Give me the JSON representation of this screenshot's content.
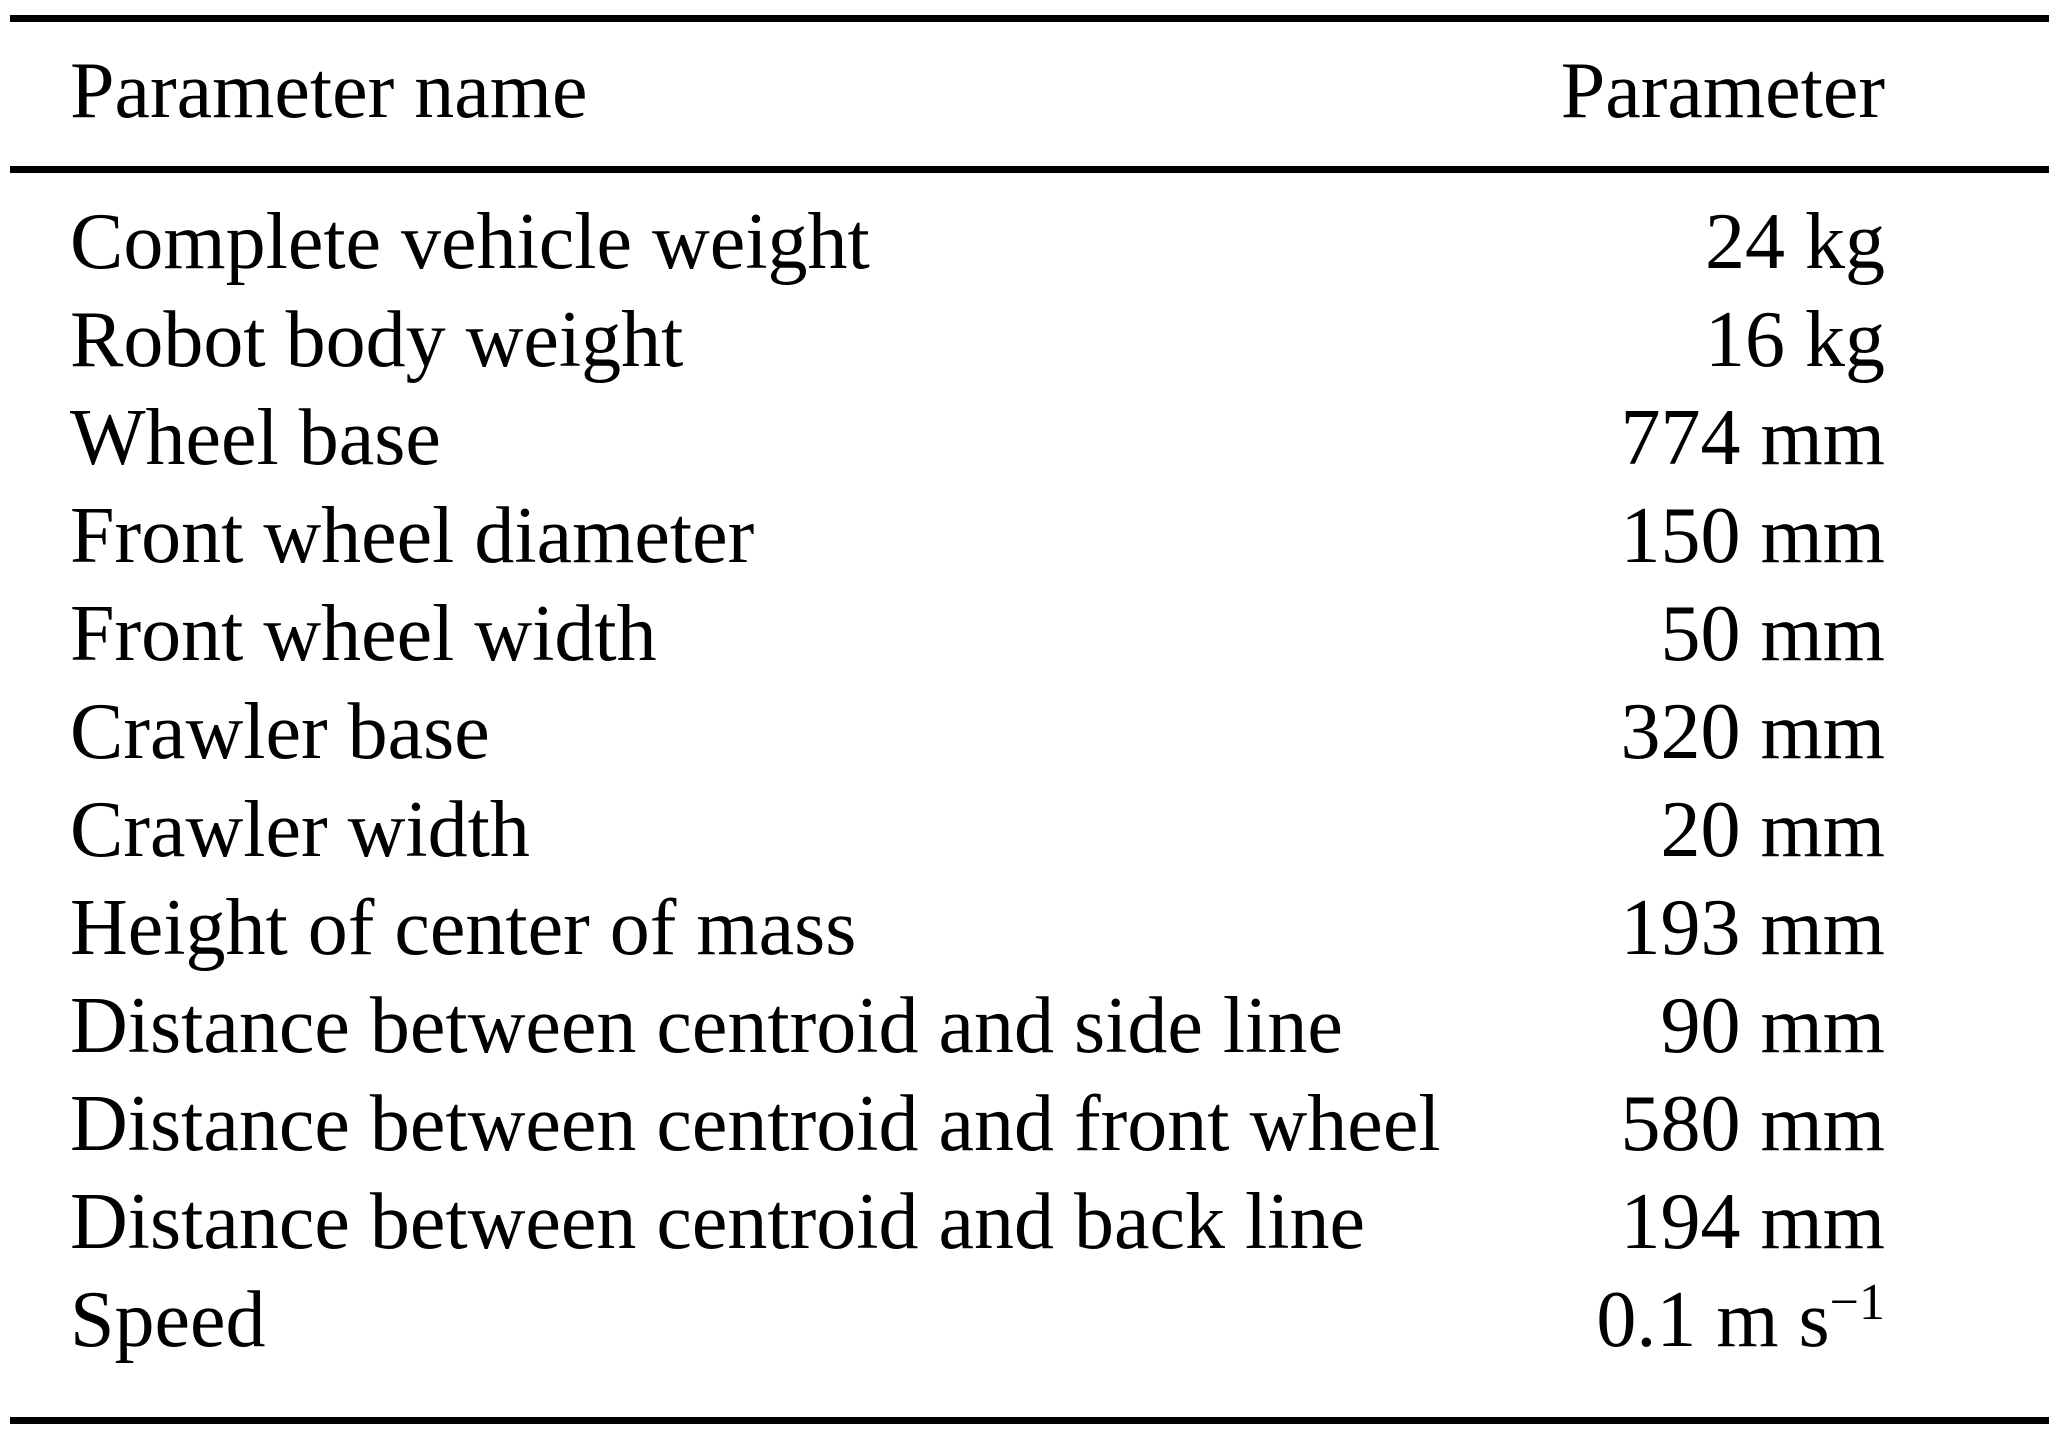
{
  "table": {
    "columns": {
      "name_header": "Parameter name",
      "value_header": "Parameter"
    },
    "rows": [
      {
        "name": "Complete vehicle weight",
        "value": "24 kg",
        "value_sup": ""
      },
      {
        "name": "Robot body weight",
        "value": "16 kg",
        "value_sup": ""
      },
      {
        "name": "Wheel base",
        "value": "774 mm",
        "value_sup": ""
      },
      {
        "name": "Front wheel diameter",
        "value": "150 mm",
        "value_sup": ""
      },
      {
        "name": "Front wheel width",
        "value": "50 mm",
        "value_sup": ""
      },
      {
        "name": "Crawler base",
        "value": "320 mm",
        "value_sup": ""
      },
      {
        "name": "Crawler width",
        "value": "20 mm",
        "value_sup": ""
      },
      {
        "name": "Height of center of mass",
        "value": "193 mm",
        "value_sup": ""
      },
      {
        "name": "Distance between centroid and side line",
        "value": "90 mm",
        "value_sup": ""
      },
      {
        "name": "Distance between centroid and front wheel",
        "value": "580 mm",
        "value_sup": ""
      },
      {
        "name": "Distance between centroid and back line",
        "value": "194 mm",
        "value_sup": ""
      },
      {
        "name": "Speed",
        "value": "0.1 m s",
        "value_sup": "−1"
      }
    ]
  }
}
